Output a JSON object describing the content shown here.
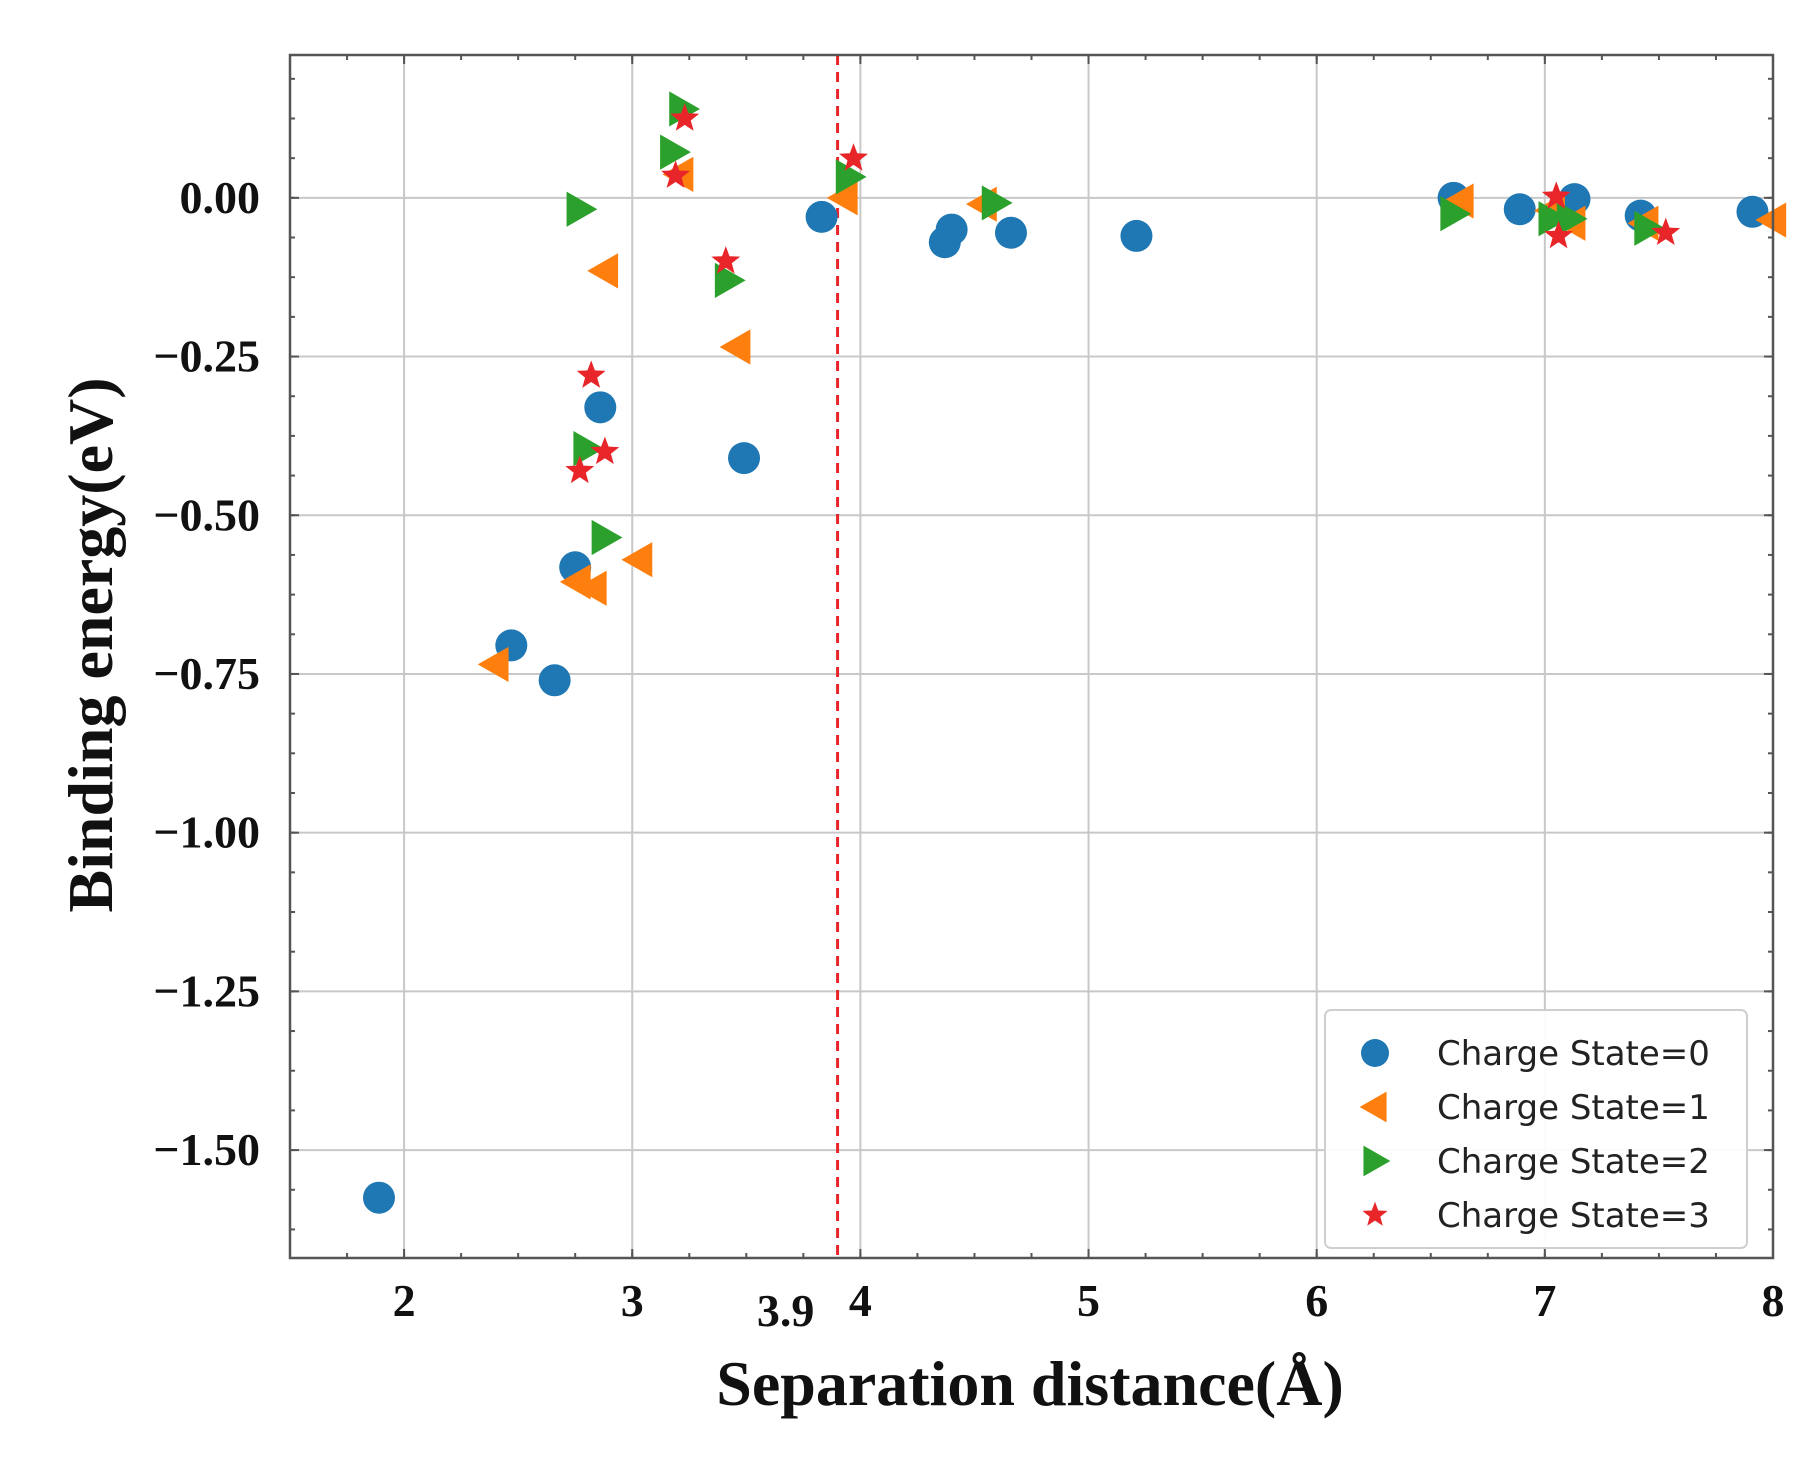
{
  "chart_data": {
    "type": "scatter",
    "title": "",
    "xlabel": "Separation distance(Å)",
    "ylabel": "Binding energy(eV)",
    "xlim": [
      1.5,
      8.0
    ],
    "ylim": [
      -1.67,
      0.225
    ],
    "grid": true,
    "xticks": [
      2,
      3,
      4,
      5,
      6,
      7,
      8
    ],
    "xtick_labels": [
      "2",
      "3",
      "4",
      "5",
      "6",
      "7",
      "8"
    ],
    "yticks": [
      0.0,
      -0.25,
      -0.5,
      -0.75,
      -1.0,
      -1.25,
      -1.5
    ],
    "ytick_labels": [
      "0.00",
      "−0.25",
      "−0.50",
      "−0.75",
      "−1.00",
      "−1.25",
      "−1.50"
    ],
    "reference_line": {
      "x": 3.9,
      "label": "3.9",
      "color": "#e8262a",
      "style": "dashed"
    },
    "legend_position": "lower-right",
    "series": [
      {
        "name": "Charge State=0",
        "marker": "circle",
        "color": "#1f77b4",
        "points": [
          [
            1.89,
            -1.575
          ],
          [
            2.47,
            -0.705
          ],
          [
            2.66,
            -0.76
          ],
          [
            2.75,
            -0.582
          ],
          [
            2.86,
            -0.33
          ],
          [
            3.49,
            -0.41
          ],
          [
            3.83,
            -0.03
          ],
          [
            4.37,
            -0.07
          ],
          [
            4.4,
            -0.05
          ],
          [
            4.66,
            -0.055
          ],
          [
            5.21,
            -0.06
          ],
          [
            6.6,
            0.0
          ],
          [
            6.89,
            -0.018
          ],
          [
            7.13,
            -0.002
          ],
          [
            7.42,
            -0.028
          ],
          [
            7.91,
            -0.022
          ]
        ]
      },
      {
        "name": "Charge State=1",
        "marker": "triangle-left",
        "color": "#ff7f0e",
        "points": [
          [
            2.4,
            -0.735
          ],
          [
            2.76,
            -0.605
          ],
          [
            2.83,
            -0.615
          ],
          [
            2.88,
            -0.115
          ],
          [
            3.03,
            -0.57
          ],
          [
            3.21,
            0.037
          ],
          [
            3.46,
            -0.235
          ],
          [
            3.93,
            0.0
          ],
          [
            4.54,
            -0.01
          ],
          [
            6.63,
            -0.005
          ],
          [
            7.03,
            -0.02
          ],
          [
            7.12,
            -0.04
          ],
          [
            7.44,
            -0.04
          ],
          [
            8.0,
            -0.035
          ]
        ]
      },
      {
        "name": "Charge State=2",
        "marker": "triangle-right",
        "color": "#2ca02c",
        "points": [
          [
            2.77,
            -0.018
          ],
          [
            2.8,
            -0.395
          ],
          [
            2.88,
            -0.535
          ],
          [
            3.18,
            0.072
          ],
          [
            3.22,
            0.14
          ],
          [
            3.42,
            -0.13
          ],
          [
            3.95,
            0.033
          ],
          [
            4.59,
            -0.008
          ],
          [
            6.6,
            -0.025
          ],
          [
            7.03,
            -0.033
          ],
          [
            7.11,
            -0.033
          ],
          [
            7.45,
            -0.048
          ]
        ]
      },
      {
        "name": "Charge State=3",
        "marker": "star",
        "color": "#e8262a",
        "points": [
          [
            2.77,
            -0.43
          ],
          [
            2.82,
            -0.28
          ],
          [
            2.88,
            -0.4
          ],
          [
            3.19,
            0.035
          ],
          [
            3.23,
            0.125
          ],
          [
            3.41,
            -0.1
          ],
          [
            3.97,
            0.062
          ],
          [
            7.05,
            0.002
          ],
          [
            7.06,
            -0.06
          ],
          [
            7.53,
            -0.055
          ]
        ]
      }
    ]
  }
}
